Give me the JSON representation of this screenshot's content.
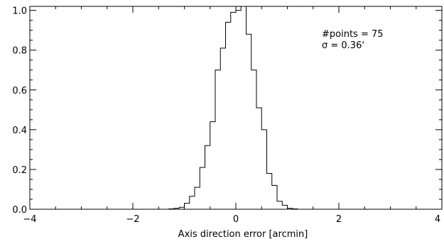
{
  "chart_data": {
    "type": "histogram",
    "title": "",
    "xlabel": "Axis direction error [arcmin]",
    "ylabel": "",
    "xlim": [
      -4,
      4
    ],
    "ylim": [
      0,
      1.02
    ],
    "x_ticks": [
      -4,
      -2,
      0,
      2,
      4
    ],
    "x_tick_labels": [
      "−4",
      "−2",
      "0",
      "2",
      "4"
    ],
    "y_ticks": [
      0.0,
      0.2,
      0.4,
      0.6,
      0.8,
      1.0
    ],
    "y_tick_labels": [
      "0.0",
      "0.2",
      "0.4",
      "0.6",
      "0.8",
      "1.0"
    ],
    "x_minor_step": 0.5,
    "y_minor_step": 0.05,
    "grid": false,
    "annotations": [
      {
        "text": "#points = 75"
      },
      {
        "text": "σ = 0.36'"
      }
    ],
    "series": [
      {
        "bin_edges": [
          -1.6,
          -1.5,
          -1.4,
          -1.3,
          -1.2,
          -1.1,
          -1.0,
          -0.9,
          -0.8,
          -0.7,
          -0.6,
          -0.5,
          -0.4,
          -0.3,
          -0.2,
          -0.1,
          0.0,
          0.1,
          0.2,
          0.3,
          0.4,
          0.5,
          0.6,
          0.7,
          0.8,
          0.9,
          1.0,
          1.1,
          1.2,
          1.3
        ],
        "values": [
          0.0,
          0.0,
          0.0,
          0.002,
          0.005,
          0.01,
          0.03,
          0.065,
          0.11,
          0.21,
          0.32,
          0.44,
          0.7,
          0.81,
          0.94,
          0.99,
          1.0,
          1.02,
          0.88,
          0.7,
          0.51,
          0.4,
          0.18,
          0.12,
          0.04,
          0.02,
          0.005,
          0.002,
          0.0
        ]
      }
    ]
  }
}
